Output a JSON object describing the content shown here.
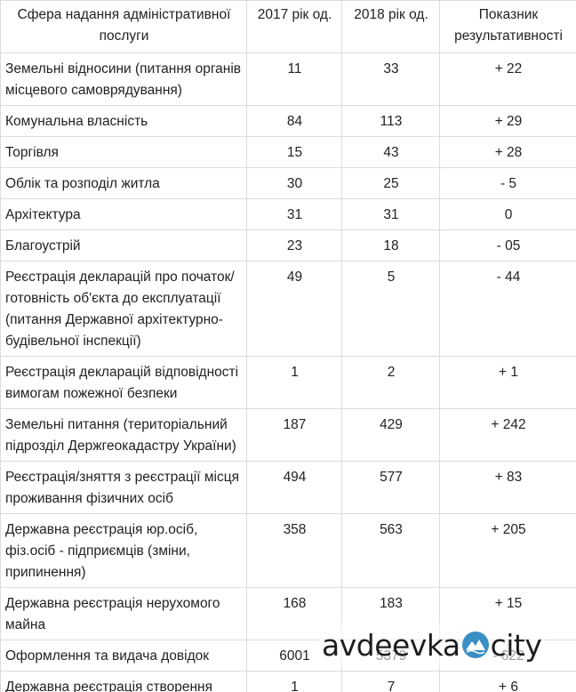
{
  "table": {
    "headers": [
      "Сфера надання адміністративної послуги",
      "2017 рік од.",
      "2018 рік од.",
      "Показник результативності"
    ],
    "rows": [
      {
        "name": "Земельні відносини (питання органів місцевого самоврядування)",
        "y2017": "11",
        "y2018": "33",
        "delta": "+ 22"
      },
      {
        "name": "Комунальна власність",
        "y2017": "84",
        "y2018": "113",
        "delta": "+ 29"
      },
      {
        "name": "Торгівля",
        "y2017": "15",
        "y2018": "43",
        "delta": "+ 28"
      },
      {
        "name": "Облік та розподіл житла",
        "y2017": "30",
        "y2018": "25",
        "delta": "- 5"
      },
      {
        "name": "Архітектура",
        "y2017": "31",
        "y2018": "31",
        "delta": "0"
      },
      {
        "name": "Благоустрій",
        "y2017": "23",
        "y2018": "18",
        "delta": "- 05"
      },
      {
        "name": "Реєстрація декларацій про початок/ готовність об'єкта до експлуатації (питання Державної архітектурно-будівельної інспекції)",
        "y2017": "49",
        "y2018": "5",
        "delta": "- 44"
      },
      {
        "name": "Реєстрація декларацій відповідності вимогам пожежної безпеки",
        "y2017": "1",
        "y2018": "2",
        "delta": "+ 1"
      },
      {
        "name": "Земельні питання (територіальний підрозділ Держгеокадастру України)",
        "y2017": "187",
        "y2018": "429",
        "delta": "+ 242"
      },
      {
        "name": "Реєстрація/зняття з реєстрації місця проживання фізичних осіб",
        "y2017": "494",
        "y2018": "577",
        "delta": "+ 83"
      },
      {
        "name": "Державна реєстрація юр.осіб, фіз.осіб - підприємців (зміни, припинення)",
        "y2017": "358",
        "y2018": "563",
        "delta": "+ 205"
      },
      {
        "name": "Державна реєстрація нерухомого майна",
        "y2017": "168",
        "y2018": "183",
        "delta": "+ 15"
      },
      {
        "name": "Оформлення та видача довідок",
        "y2017": "6001",
        "y2018": "5379",
        "delta": "- 622"
      },
      {
        "name": "Державна реєстрація створення громадського об'єднання",
        "y2017": "1",
        "y2018": "7",
        "delta": "+ 6"
      }
    ]
  },
  "watermark": {
    "left": "avdeevka",
    "right": "city",
    "icon": "mountain-badge-icon",
    "icon_color": "#3a8fc4"
  }
}
